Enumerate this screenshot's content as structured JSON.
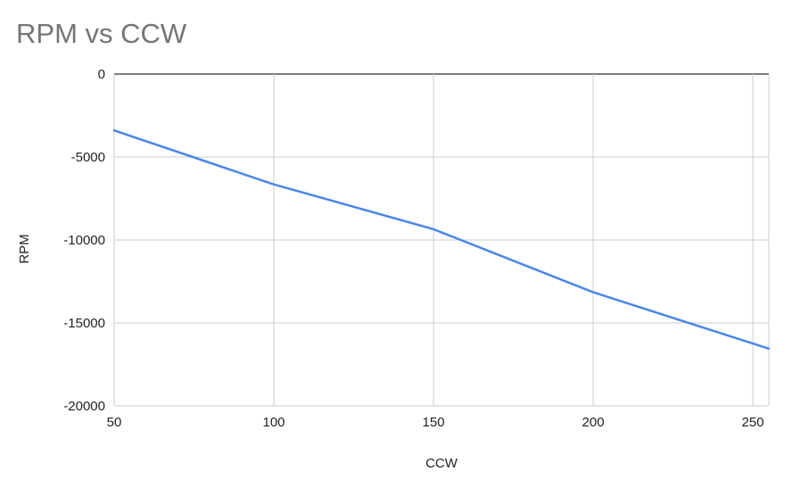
{
  "chart_data": {
    "type": "line",
    "title": "RPM vs CCW",
    "xlabel": "CCW",
    "ylabel": "RPM",
    "xlim": [
      50,
      255
    ],
    "ylim": [
      -20000,
      0
    ],
    "x_ticks": [
      50,
      100,
      150,
      200,
      250
    ],
    "y_ticks": [
      0,
      -5000,
      -10000,
      -15000,
      -20000
    ],
    "grid": true,
    "legend": "none",
    "series": [
      {
        "color": "#4a86e8",
        "points": [
          {
            "x": 50,
            "y": -3400
          },
          {
            "x": 100,
            "y": -6650
          },
          {
            "x": 150,
            "y": -9350
          },
          {
            "x": 200,
            "y": -13150
          },
          {
            "x": 255,
            "y": -16550
          }
        ]
      }
    ]
  }
}
